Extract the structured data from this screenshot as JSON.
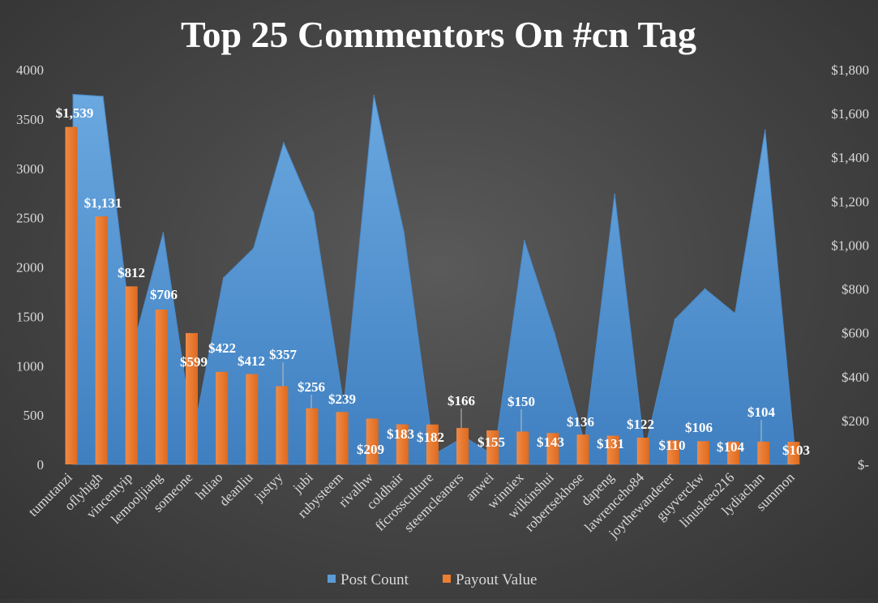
{
  "chart_data": {
    "type": "bar",
    "title": "Top 25 Commentors On #cn Tag",
    "categories": [
      "tumutanzi",
      "oflyhigh",
      "vincentyip",
      "lemooljiang",
      "someone",
      "htliao",
      "deanliu",
      "justyy",
      "jubi",
      "rubysteem",
      "rivalhw",
      "coldhair",
      "ffcrossculture",
      "steemcleaners",
      "anwei",
      "winniex",
      "wilkinshui",
      "robertsekhose",
      "dapeng",
      "lawrenceho84",
      "joythewanderer",
      "guyverckw",
      "linusleeo216",
      "lydiachan",
      "summon"
    ],
    "series": [
      {
        "name": "Post Count",
        "type": "area",
        "axis": "left",
        "color": "#5b9bd5",
        "values": [
          3750,
          3730,
          1200,
          2350,
          300,
          1890,
          2190,
          3260,
          2550,
          600,
          3740,
          2350,
          100,
          280,
          90,
          2270,
          1330,
          220,
          2740,
          140,
          1470,
          1780,
          1530,
          3390,
          100
        ]
      },
      {
        "name": "Payout Value",
        "type": "bar",
        "axis": "right",
        "color": "#ed7d31",
        "values": [
          1539,
          1131,
          812,
          706,
          599,
          422,
          412,
          357,
          256,
          239,
          209,
          183,
          182,
          166,
          155,
          150,
          143,
          136,
          131,
          122,
          110,
          106,
          104,
          104,
          103
        ],
        "labels": [
          "$1,539",
          "$1,131",
          "$812",
          "$706",
          "$599",
          "$422",
          "$412",
          "$357",
          "$256",
          "$239",
          "$209",
          "$183",
          "$182",
          "$166",
          "$155",
          "$150",
          "$143",
          "$136",
          "$131",
          "$122",
          "$110",
          "$106",
          "$104",
          "$104",
          "$103"
        ]
      }
    ],
    "y_left": {
      "min": 0,
      "max": 4000,
      "ticks": [
        "0",
        "500",
        "1000",
        "1500",
        "2000",
        "2500",
        "3000",
        "3500",
        "4000"
      ]
    },
    "y_right": {
      "min": 0,
      "max": 1800,
      "ticks": [
        "$-",
        "$200",
        "$400",
        "$600",
        "$800",
        "$1,000",
        "$1,200",
        "$1,400",
        "$1,600",
        "$1,800"
      ]
    },
    "grid": false,
    "legend": {
      "position": "bottom",
      "entries": [
        "Post Count",
        "Payout Value"
      ]
    }
  }
}
